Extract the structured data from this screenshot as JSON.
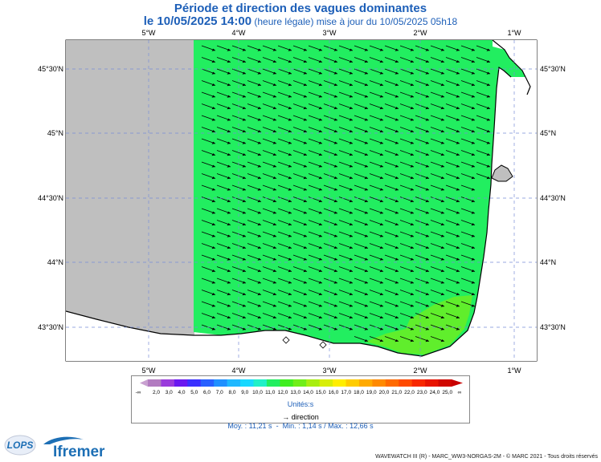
{
  "title": "Période et direction des vagues dominantes",
  "date_line": "le 10/05/2025 14:00",
  "date_suffix": "(heure légale) mise à jour du 10/05/2025 05h18",
  "lon_labels": [
    "5°W",
    "4°W",
    "3°W",
    "2°W",
    "1°W"
  ],
  "lat_labels": [
    "45°30'N",
    "45°N",
    "44°30'N",
    "44°N",
    "43°30'N"
  ],
  "legend": {
    "ticks": [
      "2,0",
      "3,0",
      "4,0",
      "5,0",
      "6,0",
      "7,0",
      "8,0",
      "9,0",
      "10,0",
      "11,0",
      "12,0",
      "13,0",
      "14,0",
      "15,0",
      "16,0",
      "17,0",
      "18,0",
      "19,0",
      "20,0",
      "21,0",
      "22,0",
      "23,0",
      "24,0",
      "25,0"
    ],
    "minus_inf": "-∞",
    "plus_inf": "∞",
    "colors": [
      "#b27bc0",
      "#9a3cdc",
      "#6a18f0",
      "#3a30ff",
      "#2860ff",
      "#2090ff",
      "#20b8ff",
      "#18d8ff",
      "#20f0c8",
      "#22ee60",
      "#40ee20",
      "#70ee18",
      "#a8ee10",
      "#d8ee08",
      "#ffee00",
      "#ffcc00",
      "#ffaa00",
      "#ff8a00",
      "#ff6a00",
      "#ff4a00",
      "#f82800",
      "#e81400",
      "#d00800"
    ],
    "unit_label": "Unités:s",
    "direction_label": "direction"
  },
  "stats": {
    "mean": "Moy. : 11,21 s",
    "sep": "-",
    "min_max": "Min. : 1,14 s / Max. : 12,66 s"
  },
  "footer": "WAVEWATCH III (R) - MARC_WW3-NORGAS-2M - © MARC 2021 - Tous droits réservés",
  "logos": {
    "lops": "LOPS",
    "ifremer": "Ifremer"
  },
  "colors": {
    "sea": "#22ee60",
    "no_data": "#bfbfbf",
    "title": "#1d5fb8"
  }
}
